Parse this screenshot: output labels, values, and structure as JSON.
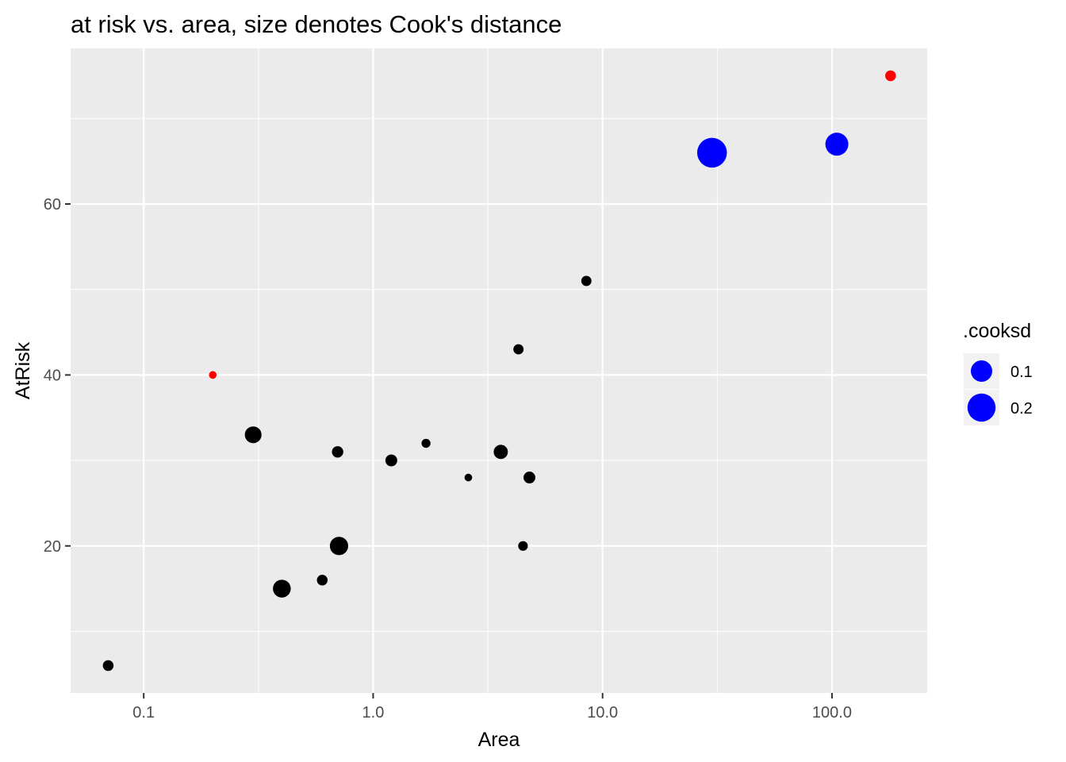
{
  "chart_data": {
    "type": "scatter",
    "title": "at risk vs. area, size denotes Cook's distance",
    "xlabel": "Area",
    "ylabel": "AtRisk",
    "x_scale": "log10",
    "xlim": [
      0.048,
      260
    ],
    "ylim": [
      2.8,
      78.2
    ],
    "x_ticks": [
      {
        "value": 0.1,
        "label": "0.1"
      },
      {
        "value": 1,
        "label": "1.0"
      },
      {
        "value": 10,
        "label": "10.0"
      },
      {
        "value": 100,
        "label": "100.0"
      }
    ],
    "y_ticks": [
      {
        "value": 20,
        "label": "20"
      },
      {
        "value": 40,
        "label": "40"
      },
      {
        "value": 60,
        "label": "60"
      }
    ],
    "grid": true,
    "colors": {
      "panel_bg": "#ebebeb",
      "grid": "#ffffff",
      "normal": "#000000",
      "influential": "#0000ff",
      "outlier": "#ff0000"
    },
    "points": [
      {
        "x": 0.07,
        "y": 6,
        "cooksd": 0.011,
        "color": "#000000"
      },
      {
        "x": 0.2,
        "y": 40,
        "cooksd": 0.002,
        "color": "#ff0000"
      },
      {
        "x": 0.3,
        "y": 33,
        "cooksd": 0.05,
        "color": "#000000"
      },
      {
        "x": 0.4,
        "y": 15,
        "cooksd": 0.06,
        "color": "#000000"
      },
      {
        "x": 0.6,
        "y": 16,
        "cooksd": 0.011,
        "color": "#000000"
      },
      {
        "x": 0.7,
        "y": 31,
        "cooksd": 0.014,
        "color": "#000000"
      },
      {
        "x": 0.71,
        "y": 20,
        "cooksd": 0.065,
        "color": "#000000"
      },
      {
        "x": 1.2,
        "y": 30,
        "cooksd": 0.016,
        "color": "#000000"
      },
      {
        "x": 1.7,
        "y": 32,
        "cooksd": 0.005,
        "color": "#000000"
      },
      {
        "x": 2.6,
        "y": 28,
        "cooksd": 0.002,
        "color": "#000000"
      },
      {
        "x": 3.6,
        "y": 31,
        "cooksd": 0.03,
        "color": "#000000"
      },
      {
        "x": 4.3,
        "y": 43,
        "cooksd": 0.009,
        "color": "#000000"
      },
      {
        "x": 4.5,
        "y": 20,
        "cooksd": 0.007,
        "color": "#000000"
      },
      {
        "x": 4.8,
        "y": 28,
        "cooksd": 0.016,
        "color": "#000000"
      },
      {
        "x": 8.5,
        "y": 51,
        "cooksd": 0.009,
        "color": "#000000"
      },
      {
        "x": 30,
        "y": 66,
        "cooksd": 0.23,
        "color": "#0000ff"
      },
      {
        "x": 105,
        "y": 67,
        "cooksd": 0.12,
        "color": "#0000ff"
      },
      {
        "x": 180,
        "y": 75,
        "cooksd": 0.011,
        "color": "#ff0000"
      }
    ],
    "legend": {
      "title": ".cooksd",
      "placement": "right",
      "entries": [
        {
          "label": "0.1",
          "value": 0.1,
          "color": "#0000ff"
        },
        {
          "label": "0.2",
          "value": 0.2,
          "color": "#0000ff"
        }
      ]
    }
  }
}
